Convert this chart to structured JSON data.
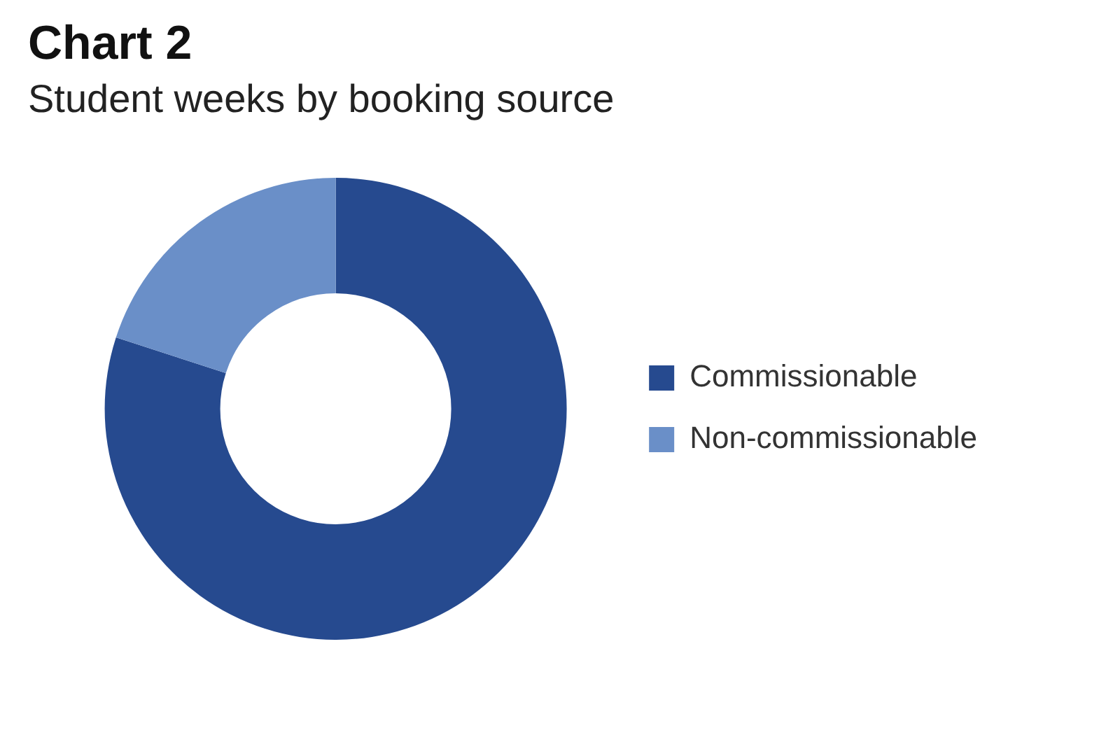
{
  "chart_data": {
    "type": "donut",
    "title": "Chart 2",
    "subtitle": "Student weeks by booking source",
    "categories": [
      "Commissionable",
      "Non-commissionable"
    ],
    "values": [
      80,
      20
    ],
    "colors": [
      "#264a8f",
      "#6a8fc8"
    ],
    "legend": "right"
  }
}
